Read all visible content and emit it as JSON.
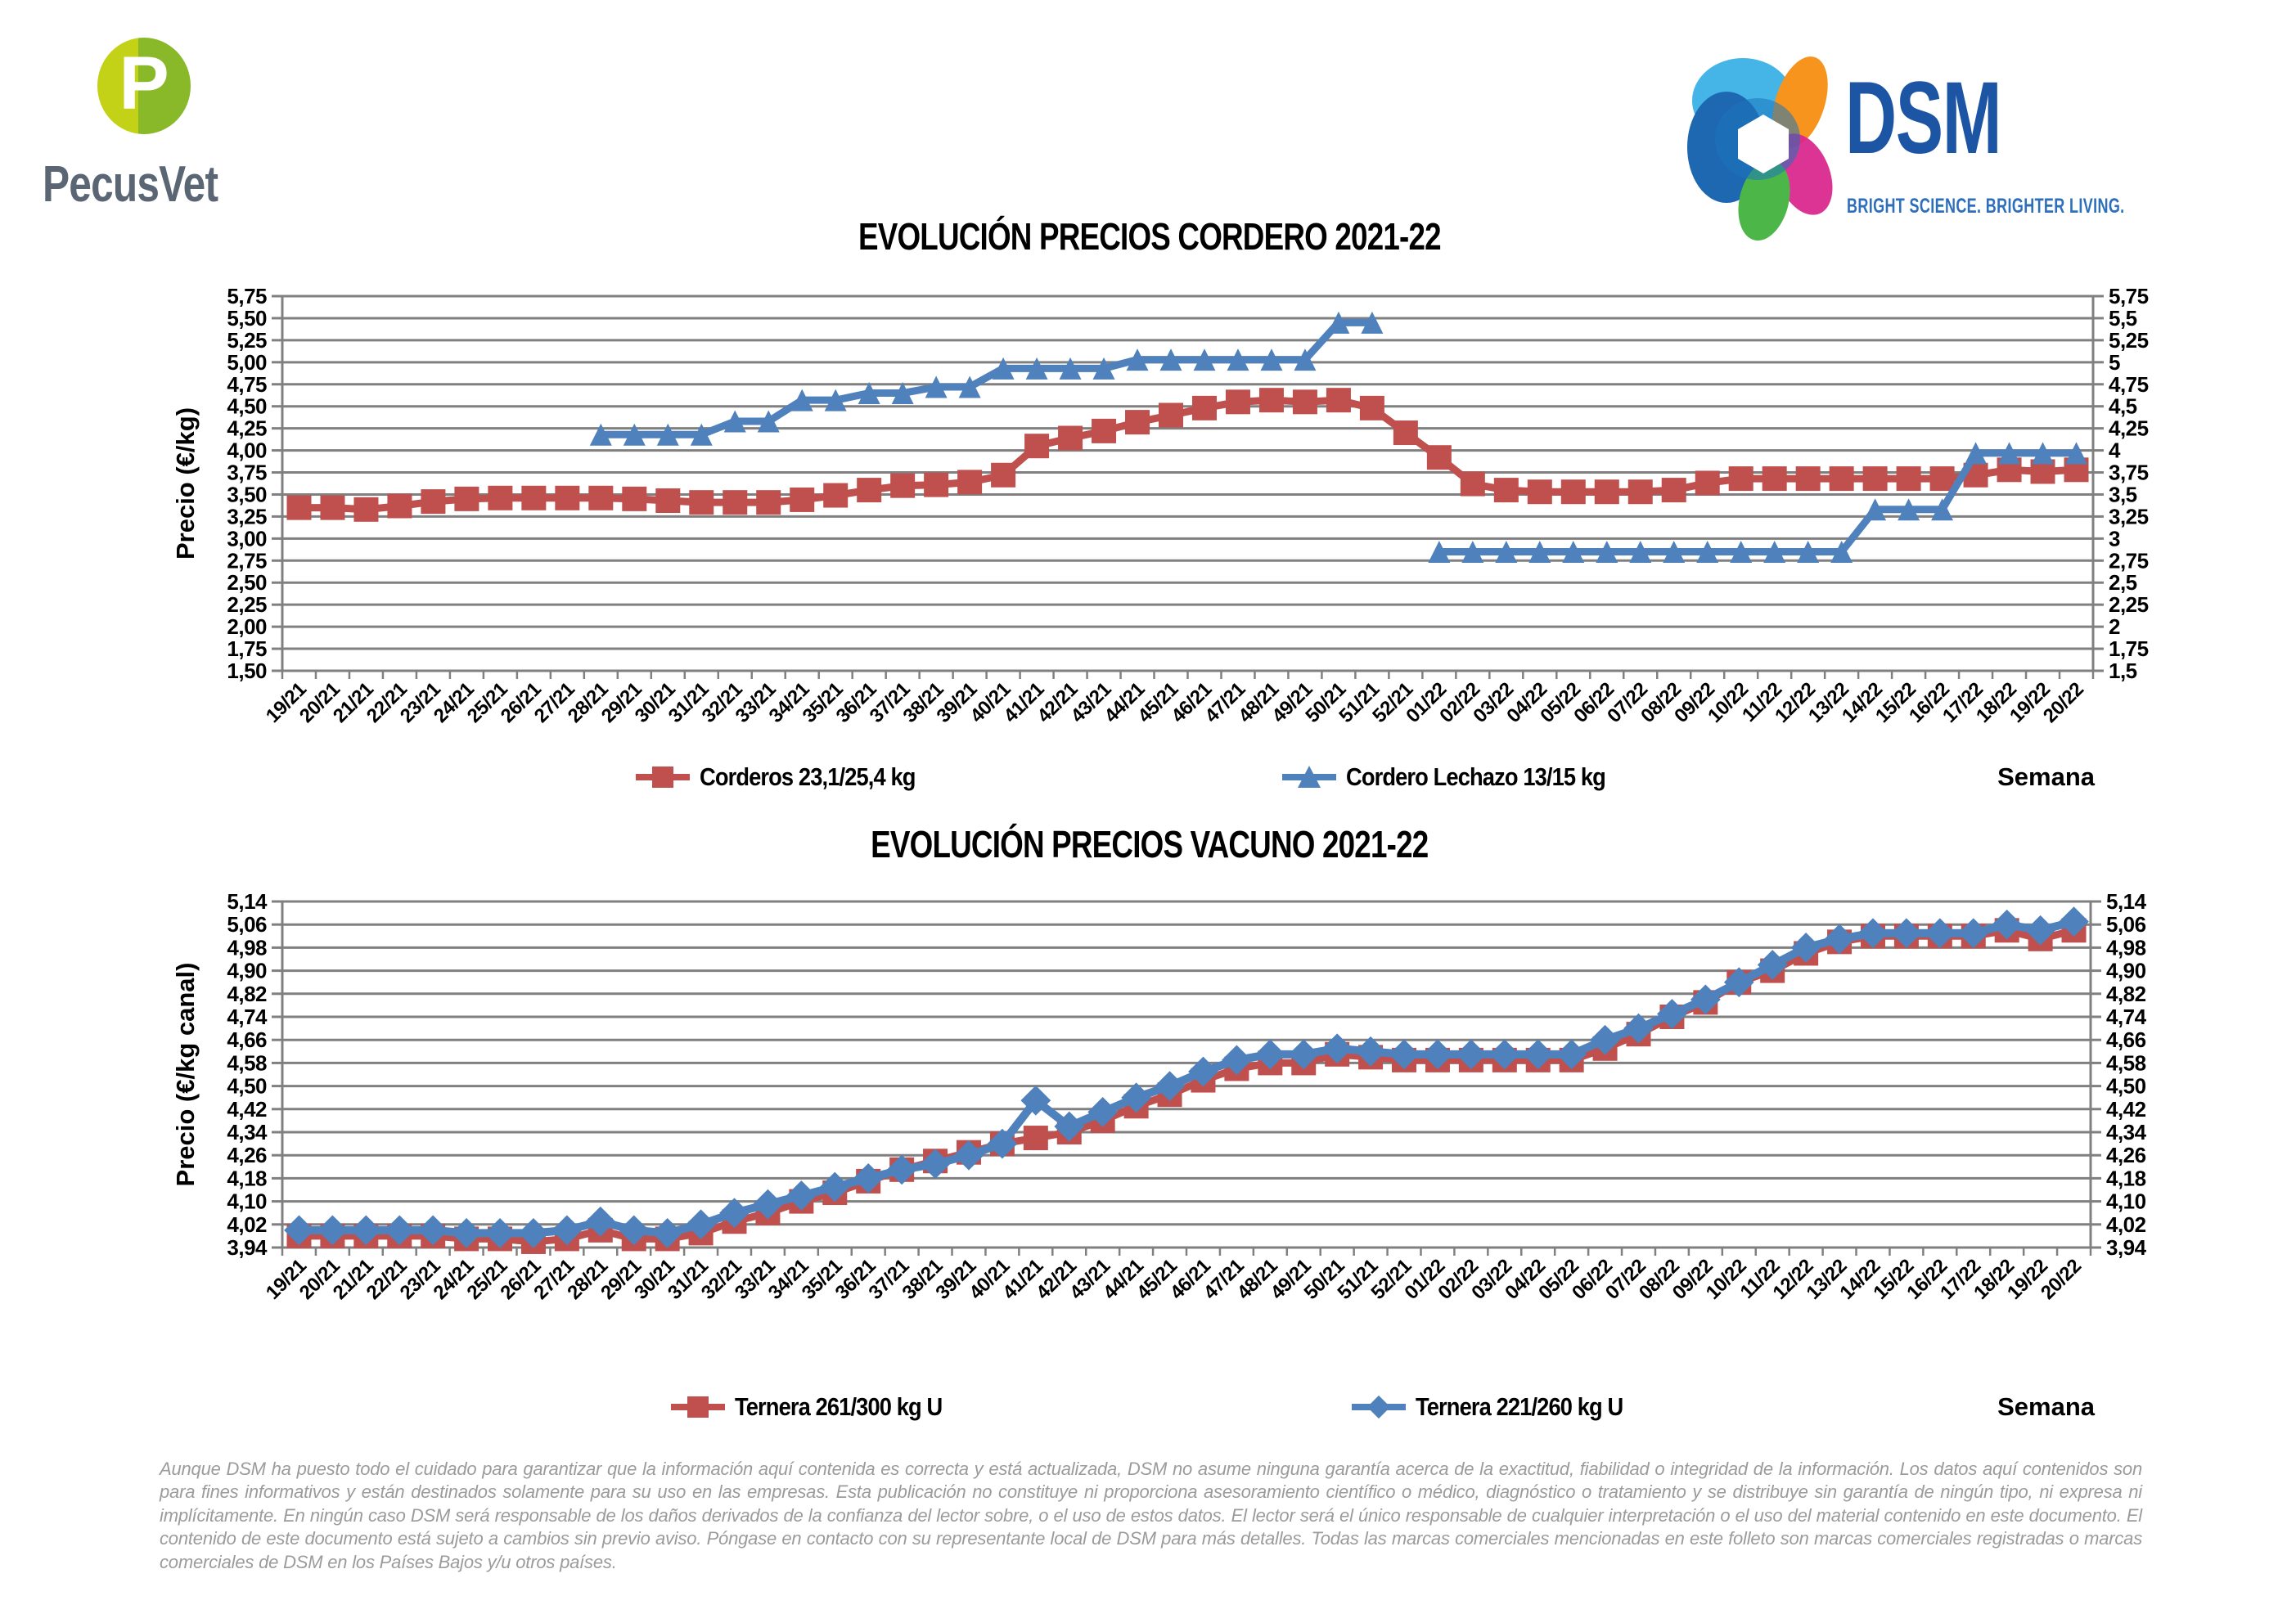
{
  "branding": {
    "pecusvet": {
      "name": "PecusVet",
      "monogram": "P",
      "circle_left_color": "#c3d117",
      "circle_right_color": "#89b929",
      "text_color": "#5a6673"
    },
    "dsm": {
      "name": "DSM",
      "tagline": "BRIGHT SCIENCE. BRIGHTER LIVING.",
      "text_color": "#1d55a5"
    }
  },
  "chart_data": [
    {
      "type": "line",
      "title": "EVOLUCIÓN PRECIOS CORDERO 2021-22",
      "ylabel": "Precio (€/kg)",
      "xlabel": "Semana",
      "ymin": 1.5,
      "ymax": 5.75,
      "ystep": 0.25,
      "grid": true,
      "grid_color": "#808080",
      "legend_position": "bottom",
      "y_ticks_left": [
        "5,75",
        "5,50",
        "5,25",
        "5,00",
        "4,75",
        "4,50",
        "4,25",
        "4,00",
        "3,75",
        "3,50",
        "3,25",
        "3,00",
        "2,75",
        "2,50",
        "2,25",
        "2,00",
        "1,75",
        "1,50"
      ],
      "y_ticks_right": [
        "5,75",
        "5,5",
        "5,25",
        "5",
        "4,75",
        "4,5",
        "4,25",
        "4",
        "3,75",
        "3,5",
        "3,25",
        "3",
        "2,75",
        "2,5",
        "2,25",
        "2",
        "1,75",
        "1,5"
      ],
      "categories": [
        "19/21",
        "20/21",
        "21/21",
        "22/21",
        "23/21",
        "24/21",
        "25/21",
        "26/21",
        "27/21",
        "28/21",
        "29/21",
        "30/21",
        "31/21",
        "32/21",
        "33/21",
        "34/21",
        "35/21",
        "36/21",
        "37/21",
        "38/21",
        "39/21",
        "40/21",
        "41/21",
        "42/21",
        "43/21",
        "44/21",
        "45/21",
        "46/21",
        "47/21",
        "48/21",
        "49/21",
        "50/21",
        "51/21",
        "52/21",
        "01/22",
        "02/22",
        "03/22",
        "04/22",
        "05/22",
        "06/22",
        "07/22",
        "08/22",
        "09/22",
        "10/22",
        "11/22",
        "12/22",
        "13/22",
        "14/22",
        "15/22",
        "16/22",
        "17/22",
        "18/22",
        "19/22",
        "20/22"
      ],
      "series": [
        {
          "name": "Corderos 23,1/25,4 kg",
          "color": "#C0504D",
          "marker": "square",
          "marker_size": 30,
          "line_width": 9,
          "values": [
            3.35,
            3.35,
            3.33,
            3.37,
            3.42,
            3.45,
            3.46,
            3.46,
            3.46,
            3.46,
            3.45,
            3.43,
            3.41,
            3.41,
            3.41,
            3.44,
            3.49,
            3.55,
            3.6,
            3.61,
            3.64,
            3.72,
            4.05,
            4.14,
            4.22,
            4.32,
            4.4,
            4.48,
            4.55,
            4.57,
            4.55,
            4.57,
            4.48,
            4.2,
            3.92,
            3.62,
            3.55,
            3.53,
            3.53,
            3.53,
            3.53,
            3.55,
            3.63,
            3.68,
            3.68,
            3.68,
            3.68,
            3.68,
            3.68,
            3.68,
            3.72,
            3.78,
            3.76,
            3.78
          ]
        },
        {
          "name": "Cordero Lechazo 13/15 kg",
          "color": "#4F81BD",
          "marker": "triangle",
          "marker_size": 27,
          "line_width": 9,
          "values": [
            null,
            null,
            null,
            null,
            null,
            null,
            null,
            null,
            null,
            4.18,
            4.18,
            4.18,
            4.18,
            4.33,
            4.33,
            4.57,
            4.57,
            4.65,
            4.65,
            4.72,
            4.72,
            4.93,
            4.93,
            4.93,
            4.93,
            5.03,
            5.03,
            5.03,
            5.03,
            5.03,
            5.03,
            5.45,
            5.45,
            null,
            2.85,
            2.85,
            2.85,
            2.85,
            2.85,
            2.85,
            2.85,
            2.85,
            2.85,
            2.85,
            2.85,
            2.85,
            2.85,
            3.33,
            3.33,
            3.33,
            3.97,
            3.97,
            3.97,
            3.97
          ]
        }
      ]
    },
    {
      "type": "line",
      "title": "EVOLUCIÓN PRECIOS VACUNO 2021-22",
      "ylabel": "Precio (€/kg canal)",
      "xlabel": "Semana",
      "ymin": 3.94,
      "ymax": 5.14,
      "ystep": 0.08,
      "grid": true,
      "grid_color": "#808080",
      "legend_position": "bottom",
      "y_ticks_left": [
        "5,14",
        "5,06",
        "4,98",
        "4,90",
        "4,82",
        "4,74",
        "4,66",
        "4,58",
        "4,50",
        "4,42",
        "4,34",
        "4,26",
        "4,18",
        "4,10",
        "4,02",
        "3,94"
      ],
      "y_ticks_right": [
        "5,14",
        "5,06",
        "4,98",
        "4,90",
        "4,82",
        "4,74",
        "4,66",
        "4,58",
        "4,50",
        "4,42",
        "4,34",
        "4,26",
        "4,18",
        "4,10",
        "4,02",
        "3,94"
      ],
      "categories": [
        "19/21",
        "20/21",
        "21/21",
        "22/21",
        "23/21",
        "24/21",
        "25/21",
        "26/21",
        "27/21",
        "28/21",
        "29/21",
        "30/21",
        "31/21",
        "32/21",
        "33/21",
        "34/21",
        "35/21",
        "36/21",
        "37/21",
        "38/21",
        "39/21",
        "40/21",
        "41/21",
        "42/21",
        "43/21",
        "44/21",
        "45/21",
        "46/21",
        "47/21",
        "48/21",
        "49/21",
        "50/21",
        "51/21",
        "52/21",
        "01/22",
        "02/22",
        "03/22",
        "04/22",
        "05/22",
        "06/22",
        "07/22",
        "08/22",
        "09/22",
        "10/22",
        "11/22",
        "12/22",
        "13/22",
        "14/22",
        "15/22",
        "16/22",
        "17/22",
        "18/22",
        "19/22",
        "20/22"
      ],
      "series": [
        {
          "name": "Ternera 261/300 kg U",
          "color": "#C0504D",
          "marker": "square",
          "marker_size": 30,
          "line_width": 9,
          "values": [
            3.98,
            3.98,
            3.98,
            3.98,
            3.98,
            3.97,
            3.97,
            3.96,
            3.97,
            4.0,
            3.97,
            3.97,
            3.99,
            4.03,
            4.06,
            4.1,
            4.13,
            4.17,
            4.21,
            4.24,
            4.27,
            4.3,
            4.32,
            4.34,
            4.38,
            4.43,
            4.47,
            4.52,
            4.56,
            4.58,
            4.58,
            4.61,
            4.6,
            4.59,
            4.59,
            4.59,
            4.59,
            4.59,
            4.59,
            4.63,
            4.68,
            4.74,
            4.79,
            4.86,
            4.9,
            4.96,
            5.0,
            5.02,
            5.02,
            5.02,
            5.02,
            5.04,
            5.01,
            5.04
          ]
        },
        {
          "name": "Ternera 221/260 kg U",
          "color": "#4F81BD",
          "marker": "diamond",
          "marker_size": 26,
          "line_width": 10,
          "values": [
            4.0,
            4.0,
            4.0,
            4.0,
            4.0,
            3.99,
            3.99,
            3.99,
            4.0,
            4.03,
            4.0,
            3.99,
            4.02,
            4.06,
            4.09,
            4.12,
            4.15,
            4.18,
            4.21,
            4.23,
            4.26,
            4.3,
            4.45,
            4.36,
            4.41,
            4.46,
            4.5,
            4.55,
            4.59,
            4.61,
            4.61,
            4.63,
            4.62,
            4.61,
            4.61,
            4.61,
            4.61,
            4.61,
            4.61,
            4.66,
            4.7,
            4.75,
            4.8,
            4.86,
            4.92,
            4.98,
            5.01,
            5.03,
            5.03,
            5.03,
            5.03,
            5.06,
            5.04,
            5.07
          ]
        }
      ]
    }
  ],
  "footer": {
    "text": "Aunque DSM ha puesto todo el cuidado para garantizar que la información aquí contenida es correcta y está actualizada, DSM no asume ninguna garantía acerca de la exactitud, fiabilidad o integridad de la información. Los datos aquí contenidos son para fines informativos y están destinados solamente para su uso en las empresas. Esta publicación no constituye ni proporciona asesoramiento científico o médico, diagnóstico o tratamiento y se distribuye sin garantía de ningún tipo, ni expresa ni implícitamente. En ningún caso DSM será responsable de los daños derivados de la confianza del lector sobre, o el uso de estos datos. El lector será el único responsable de cualquier interpretación o el uso del material contenido en este documento. El contenido de este documento está sujeto a cambios sin previo aviso. Póngase en contacto con su representante local de DSM para más detalles. Todas las marcas comerciales mencionadas en este folleto son marcas comerciales registradas o marcas comerciales de DSM en los Países Bajos y/u otros países."
  }
}
